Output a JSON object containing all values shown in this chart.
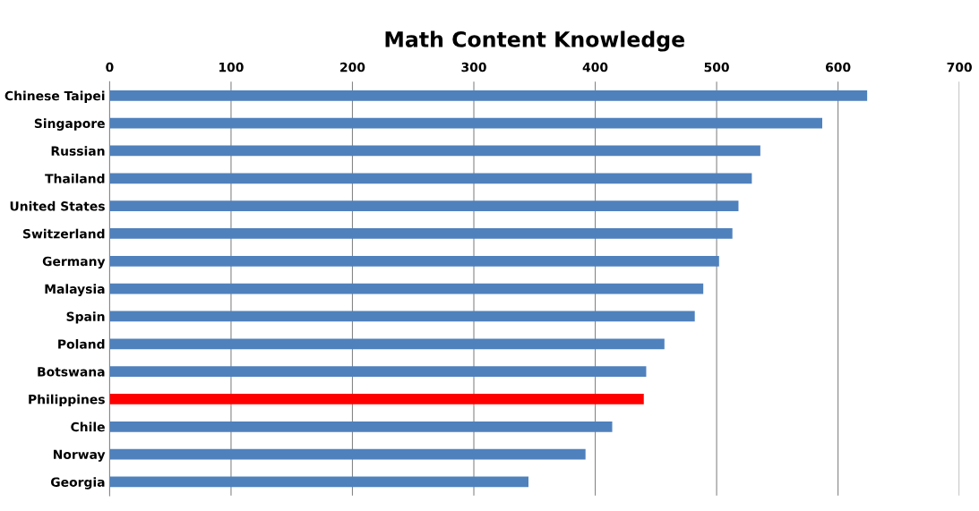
{
  "chart_data": {
    "type": "bar",
    "orientation": "horizontal",
    "title": "Math Content Knowledge",
    "categories": [
      "Chinese Taipei",
      "Singapore",
      "Russian",
      "Thailand",
      "United States",
      "Switzerland",
      "Germany",
      "Malaysia",
      "Spain",
      "Poland",
      "Botswana",
      "Philippines",
      "Chile",
      "Norway",
      "Georgia"
    ],
    "values": [
      624,
      587,
      536,
      529,
      518,
      513,
      502,
      489,
      482,
      457,
      442,
      440,
      414,
      392,
      345
    ],
    "colors": [
      "#4f81bd",
      "#4f81bd",
      "#4f81bd",
      "#4f81bd",
      "#4f81bd",
      "#4f81bd",
      "#4f81bd",
      "#4f81bd",
      "#4f81bd",
      "#4f81bd",
      "#4f81bd",
      "#ff0000",
      "#4f81bd",
      "#4f81bd",
      "#4f81bd"
    ],
    "xlim": [
      0,
      700
    ],
    "xticks": [
      0,
      100,
      200,
      300,
      400,
      500,
      600,
      700
    ],
    "grid": "x"
  }
}
